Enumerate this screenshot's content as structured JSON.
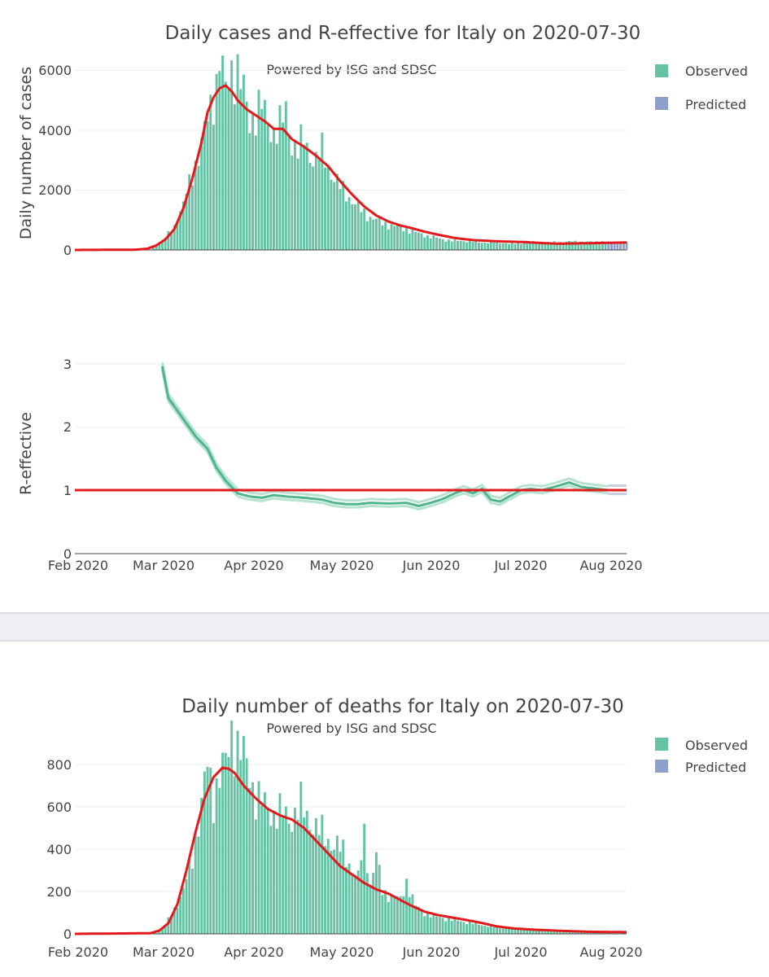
{
  "charts": {
    "cases": {
      "title": "Daily cases and R-effective for Italy on 2020-07-30",
      "subtitle": "Powered by ISG and SDSC",
      "ylabel": "Daily number of cases",
      "yticks": [
        "0",
        "2000",
        "4000",
        "6000"
      ],
      "legend": [
        "Observed",
        "Predicted"
      ]
    },
    "reff": {
      "ylabel": "R-effective",
      "yticks": [
        "0",
        "1",
        "2",
        "3"
      ],
      "xticks": [
        "Feb 2020",
        "Mar 2020",
        "Apr 2020",
        "May 2020",
        "Jun 2020",
        "Jul 2020",
        "Aug 2020"
      ]
    },
    "deaths": {
      "title": "Daily number of deaths for Italy on 2020-07-30",
      "subtitle": "Powered by ISG and SDSC",
      "yticks": [
        "0",
        "200",
        "400",
        "600",
        "800"
      ],
      "xticks": [
        "Feb 2020",
        "Mar 2020",
        "Apr 2020",
        "May 2020",
        "Jun 2020",
        "Jul 2020",
        "Aug 2020"
      ],
      "legend": [
        "Observed",
        "Predicted"
      ]
    }
  },
  "colors": {
    "observed": "#66c2a5",
    "predicted": "#8da0cb",
    "smooth": "#e31a1c",
    "r_line": "#4fb58f",
    "r_band": "#b6e3cf"
  },
  "chart_data": [
    {
      "type": "bar",
      "title": "Daily cases and R-effective for Italy on 2020-07-30",
      "ylabel": "Daily number of cases",
      "x_range_days": [
        0,
        183
      ],
      "ylim": [
        0,
        6500
      ],
      "observed_key_days": [
        [
          0,
          0
        ],
        [
          25,
          0
        ],
        [
          27,
          150
        ],
        [
          30,
          400
        ],
        [
          33,
          800
        ],
        [
          36,
          1500
        ],
        [
          39,
          2600
        ],
        [
          42,
          3500
        ],
        [
          45,
          4800
        ],
        [
          47,
          5600
        ],
        [
          48,
          6500
        ],
        [
          50,
          5200
        ],
        [
          52,
          6100
        ],
        [
          54,
          6000
        ],
        [
          56,
          5200
        ],
        [
          58,
          4300
        ],
        [
          60,
          4600
        ],
        [
          62,
          4800
        ],
        [
          64,
          4200
        ],
        [
          66,
          4000
        ],
        [
          68,
          4100
        ],
        [
          70,
          4600
        ],
        [
          72,
          3600
        ],
        [
          74,
          3300
        ],
        [
          76,
          3700
        ],
        [
          78,
          3200
        ],
        [
          80,
          3000
        ],
        [
          82,
          3300
        ],
        [
          84,
          2800
        ],
        [
          86,
          2400
        ],
        [
          88,
          2100
        ],
        [
          90,
          1900
        ],
        [
          94,
          1400
        ],
        [
          98,
          1100
        ],
        [
          102,
          900
        ],
        [
          106,
          800
        ],
        [
          110,
          700
        ],
        [
          114,
          550
        ],
        [
          118,
          450
        ],
        [
          122,
          350
        ],
        [
          126,
          300
        ],
        [
          130,
          300
        ],
        [
          135,
          250
        ],
        [
          140,
          260
        ],
        [
          145,
          200
        ],
        [
          150,
          250
        ],
        [
          155,
          250
        ],
        [
          160,
          250
        ],
        [
          165,
          280
        ],
        [
          170,
          260
        ],
        [
          176,
          280
        ]
      ],
      "predicted_start_day": 177,
      "predicted_value": 280,
      "smooth_key_days": [
        [
          0,
          0
        ],
        [
          20,
          10
        ],
        [
          24,
          40
        ],
        [
          27,
          150
        ],
        [
          30,
          350
        ],
        [
          33,
          700
        ],
        [
          36,
          1400
        ],
        [
          39,
          2400
        ],
        [
          42,
          3600
        ],
        [
          44,
          4600
        ],
        [
          46,
          5100
        ],
        [
          48,
          5400
        ],
        [
          50,
          5500
        ],
        [
          52,
          5300
        ],
        [
          54,
          5000
        ],
        [
          57,
          4700
        ],
        [
          60,
          4500
        ],
        [
          63,
          4300
        ],
        [
          66,
          4050
        ],
        [
          69,
          4050
        ],
        [
          72,
          3700
        ],
        [
          76,
          3450
        ],
        [
          80,
          3150
        ],
        [
          84,
          2800
        ],
        [
          88,
          2300
        ],
        [
          92,
          1850
        ],
        [
          96,
          1450
        ],
        [
          100,
          1150
        ],
        [
          104,
          950
        ],
        [
          108,
          820
        ],
        [
          112,
          720
        ],
        [
          116,
          610
        ],
        [
          120,
          520
        ],
        [
          126,
          400
        ],
        [
          132,
          330
        ],
        [
          140,
          290
        ],
        [
          150,
          260
        ],
        [
          155,
          230
        ],
        [
          160,
          210
        ],
        [
          170,
          225
        ],
        [
          183,
          250
        ]
      ],
      "series": [
        {
          "name": "Observed"
        },
        {
          "name": "Predicted"
        }
      ]
    },
    {
      "type": "line",
      "ylabel": "R-effective",
      "ylim": [
        0,
        3.3
      ],
      "x_ticks": [
        "Feb 2020",
        "Mar 2020",
        "Apr 2020",
        "May 2020",
        "Jun 2020",
        "Jul 2020",
        "Aug 2020"
      ],
      "reference_line": 1,
      "r_key_days": [
        [
          29,
          2.95
        ],
        [
          31,
          2.45
        ],
        [
          34,
          2.25
        ],
        [
          37,
          2.05
        ],
        [
          40,
          1.85
        ],
        [
          44,
          1.65
        ],
        [
          47,
          1.35
        ],
        [
          50,
          1.15
        ],
        [
          54,
          0.95
        ],
        [
          58,
          0.9
        ],
        [
          62,
          0.88
        ],
        [
          66,
          0.92
        ],
        [
          70,
          0.9
        ],
        [
          76,
          0.88
        ],
        [
          82,
          0.85
        ],
        [
          86,
          0.8
        ],
        [
          90,
          0.78
        ],
        [
          94,
          0.78
        ],
        [
          98,
          0.8
        ],
        [
          104,
          0.79
        ],
        [
          110,
          0.8
        ],
        [
          114,
          0.75
        ],
        [
          118,
          0.8
        ],
        [
          122,
          0.86
        ],
        [
          126,
          0.95
        ],
        [
          129,
          1.0
        ],
        [
          132,
          0.95
        ],
        [
          135,
          1.02
        ],
        [
          138,
          0.85
        ],
        [
          141,
          0.82
        ],
        [
          144,
          0.9
        ],
        [
          148,
          1.0
        ],
        [
          151,
          1.02
        ],
        [
          155,
          1.0
        ],
        [
          159,
          1.05
        ],
        [
          164,
          1.12
        ],
        [
          168,
          1.05
        ],
        [
          177,
          1.0
        ]
      ],
      "r_predicted_end_day": 183
    },
    {
      "type": "bar",
      "title": "Daily number of deaths for Italy on 2020-07-30",
      "x_ticks": [
        "Feb 2020",
        "Mar 2020",
        "Apr 2020",
        "May 2020",
        "Jun 2020",
        "Jul 2020",
        "Aug 2020"
      ],
      "ylim": [
        0,
        1000
      ],
      "observed_key_days": [
        [
          0,
          0
        ],
        [
          26,
          0
        ],
        [
          28,
          10
        ],
        [
          30,
          40
        ],
        [
          33,
          120
        ],
        [
          36,
          200
        ],
        [
          39,
          370
        ],
        [
          42,
          600
        ],
        [
          44,
          800
        ],
        [
          46,
          650
        ],
        [
          48,
          750
        ],
        [
          50,
          790
        ],
        [
          52,
          970
        ],
        [
          54,
          880
        ],
        [
          56,
          830
        ],
        [
          58,
          760
        ],
        [
          60,
          650
        ],
        [
          63,
          600
        ],
        [
          66,
          570
        ],
        [
          69,
          560
        ],
        [
          72,
          550
        ],
        [
          75,
          600
        ],
        [
          78,
          540
        ],
        [
          80,
          500
        ],
        [
          83,
          460
        ],
        [
          86,
          420
        ],
        [
          88,
          400
        ],
        [
          90,
          370
        ],
        [
          92,
          300
        ],
        [
          94,
          260
        ],
        [
          96,
          470
        ],
        [
          98,
          230
        ],
        [
          100,
          370
        ],
        [
          102,
          200
        ],
        [
          105,
          180
        ],
        [
          108,
          160
        ],
        [
          110,
          250
        ],
        [
          113,
          130
        ],
        [
          116,
          100
        ],
        [
          120,
          80
        ],
        [
          124,
          70
        ],
        [
          128,
          60
        ],
        [
          132,
          50
        ],
        [
          136,
          40
        ],
        [
          140,
          30
        ],
        [
          144,
          25
        ],
        [
          150,
          20
        ],
        [
          158,
          15
        ],
        [
          165,
          10
        ],
        [
          177,
          8
        ]
      ],
      "smooth_key_days": [
        [
          0,
          0
        ],
        [
          25,
          3
        ],
        [
          28,
          15
        ],
        [
          31,
          50
        ],
        [
          34,
          140
        ],
        [
          37,
          300
        ],
        [
          40,
          480
        ],
        [
          43,
          640
        ],
        [
          46,
          740
        ],
        [
          49,
          785
        ],
        [
          51,
          780
        ],
        [
          53,
          760
        ],
        [
          56,
          700
        ],
        [
          60,
          640
        ],
        [
          64,
          590
        ],
        [
          68,
          560
        ],
        [
          72,
          540
        ],
        [
          76,
          500
        ],
        [
          80,
          440
        ],
        [
          84,
          380
        ],
        [
          88,
          320
        ],
        [
          92,
          280
        ],
        [
          96,
          240
        ],
        [
          100,
          210
        ],
        [
          104,
          190
        ],
        [
          108,
          160
        ],
        [
          112,
          130
        ],
        [
          116,
          105
        ],
        [
          120,
          90
        ],
        [
          124,
          80
        ],
        [
          128,
          70
        ],
        [
          132,
          60
        ],
        [
          136,
          48
        ],
        [
          140,
          35
        ],
        [
          146,
          25
        ],
        [
          152,
          20
        ],
        [
          160,
          15
        ],
        [
          170,
          10
        ],
        [
          183,
          8
        ]
      ],
      "series": [
        {
          "name": "Observed"
        },
        {
          "name": "Predicted"
        }
      ]
    }
  ]
}
